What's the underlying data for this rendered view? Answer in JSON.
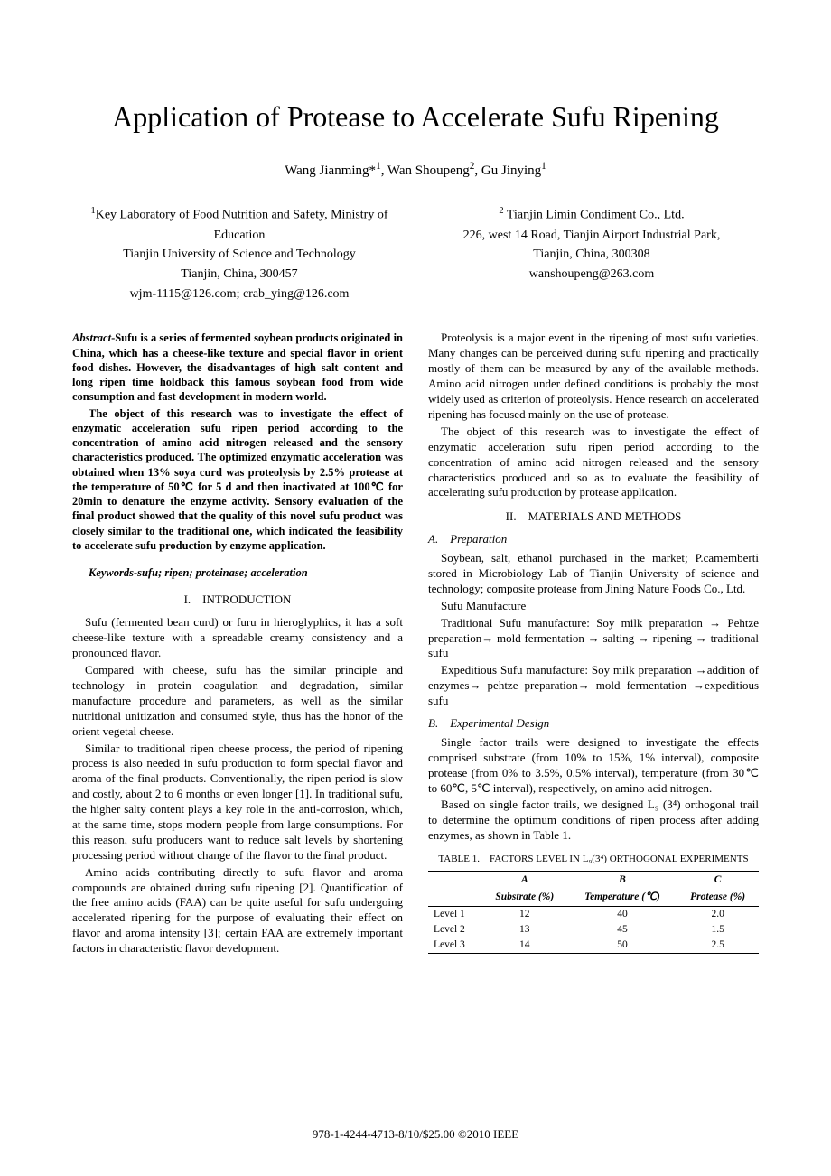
{
  "title": "Application of Protease to Accelerate Sufu Ripening",
  "authors_html": "Wang Jianming*<sup>1</sup>, Wan Shoupeng<sup>2</sup>, Gu Jinying<sup>1</sup>",
  "affiliations": [
    {
      "lines": [
        "<sup>1</sup>Key Laboratory of Food Nutrition and Safety, Ministry of Education",
        "Tianjin University of Science and Technology",
        "Tianjin, China, 300457",
        "wjm-1115@126.com; crab_ying@126.com"
      ]
    },
    {
      "lines": [
        "<sup>2</sup> Tianjin Limin Condiment Co., Ltd.",
        "226, west 14 Road, Tianjin Airport Industrial Park,",
        "Tianjin, China, 300308",
        "wanshoupeng@263.com"
      ]
    }
  ],
  "abstract": {
    "lead": "Abstract",
    "para1": "-Sufu is a series of fermented soybean products originated in China, which has a cheese-like texture and special flavor in orient food dishes. However, the disadvantages of high salt content and long ripen time holdback this famous soybean food from wide consumption and fast development in modern world.",
    "para2": "The object of this research was to investigate the effect of enzymatic acceleration sufu ripen period according to the concentration of amino acid nitrogen released and the sensory characteristics produced. The optimized enzymatic acceleration was obtained when 13% soya curd was proteolysis by 2.5% protease at the temperature of 50℃ for 5 d and then inactivated at 100℃ for 20min to denature the enzyme activity. Sensory evaluation of the final product showed that the quality of this novel sufu product was closely similar to the traditional one, which indicated the feasibility to accelerate sufu production by enzyme application."
  },
  "keywords": "Keywords-sufu; ripen; proteinase; acceleration",
  "sections": {
    "intro_heading": "I. INTRODUCTION",
    "methods_heading": "II. MATERIALS AND METHODS",
    "sub_a": "A. Preparation",
    "sub_b": "B. Experimental Design"
  },
  "left_paras": [
    "Sufu (fermented bean curd) or furu in hieroglyphics, it has a soft cheese-like texture with a spreadable creamy consistency and a pronounced flavor.",
    "Compared with cheese, sufu has the similar principle and technology in protein coagulation and degradation, similar manufacture procedure and parameters, as well as the similar nutritional unitization and consumed style, thus has the honor of the orient vegetal cheese.",
    "Similar to traditional ripen cheese process, the period of ripening process is also needed in sufu production to form special flavor and aroma of the final products. Conventionally, the ripen period is slow and costly, about 2 to 6 months or even longer [1]. In traditional sufu, the higher salty content plays a key role in the anti-corrosion, which, at the same time, stops modern people from large consumptions. For this reason, sufu producers want to reduce salt levels by shortening processing period without change of the flavor to the final product.",
    "Amino acids contributing directly to sufu flavor and aroma compounds are obtained during sufu ripening [2]. Quantification of the free amino acids (FAA) can be quite useful for sufu undergoing accelerated ripening for the purpose of evaluating their effect on flavor and aroma intensity [3]; certain FAA are extremely important factors in characteristic flavor development."
  ],
  "right_top_paras": [
    "Proteolysis is a major event in the ripening of most sufu varieties. Many changes can be perceived during sufu ripening and practically mostly of them can be measured by any of the available methods. Amino acid nitrogen under defined conditions is probably the most widely used as criterion of proteolysis. Hence research on accelerated ripening has focused mainly on the use of protease.",
    "The object of this research was to investigate the effect of enzymatic acceleration sufu ripen period according to the concentration of amino acid nitrogen released and the sensory characteristics produced and so as to evaluate the feasibility of accelerating sufu production by protease application."
  ],
  "prep_paras": [
    "Soybean, salt, ethanol purchased in the market; P.camemberti stored in Microbiology Lab of Tianjin University of science and technology; composite protease from Jining Nature Foods Co., Ltd.",
    "Sufu Manufacture",
    "Traditional Sufu manufacture: Soy milk preparation → Pehtze preparation→ mold fermentation → salting → ripening → traditional sufu",
    "Expeditious Sufu manufacture: Soy milk preparation →addition of enzymes→ pehtze preparation→ mold fermentation →expeditious sufu"
  ],
  "exp_paras": [
    "Single factor trails were designed to investigate the effects comprised substrate (from 10% to 15%, 1% interval), composite protease (from 0% to 3.5%, 0.5% interval), temperature (from 30℃ to 60℃, 5℃ interval), respectively, on amino acid nitrogen.",
    "Based on single factor trails, we designed L₉ (3⁴) orthogonal trail to determine the optimum conditions of ripen process after adding enzymes, as shown in Table 1."
  ],
  "table": {
    "caption": "TABLE 1. FACTORS LEVEL IN L₉(3⁴) ORTHOGONAL EXPERIMENTS",
    "header_top": [
      "",
      "A",
      "B",
      "C"
    ],
    "header_sub": [
      "",
      "Substrate (%)",
      "Temperature (℃)",
      "Protease (%)"
    ],
    "rows": [
      [
        "Level 1",
        "12",
        "40",
        "2.0"
      ],
      [
        "Level 2",
        "13",
        "45",
        "1.5"
      ],
      [
        "Level 3",
        "14",
        "50",
        "2.5"
      ]
    ],
    "border_color": "#000000"
  },
  "footer": "978-1-4244-4713-8/10/$25.00 ©2010 IEEE"
}
